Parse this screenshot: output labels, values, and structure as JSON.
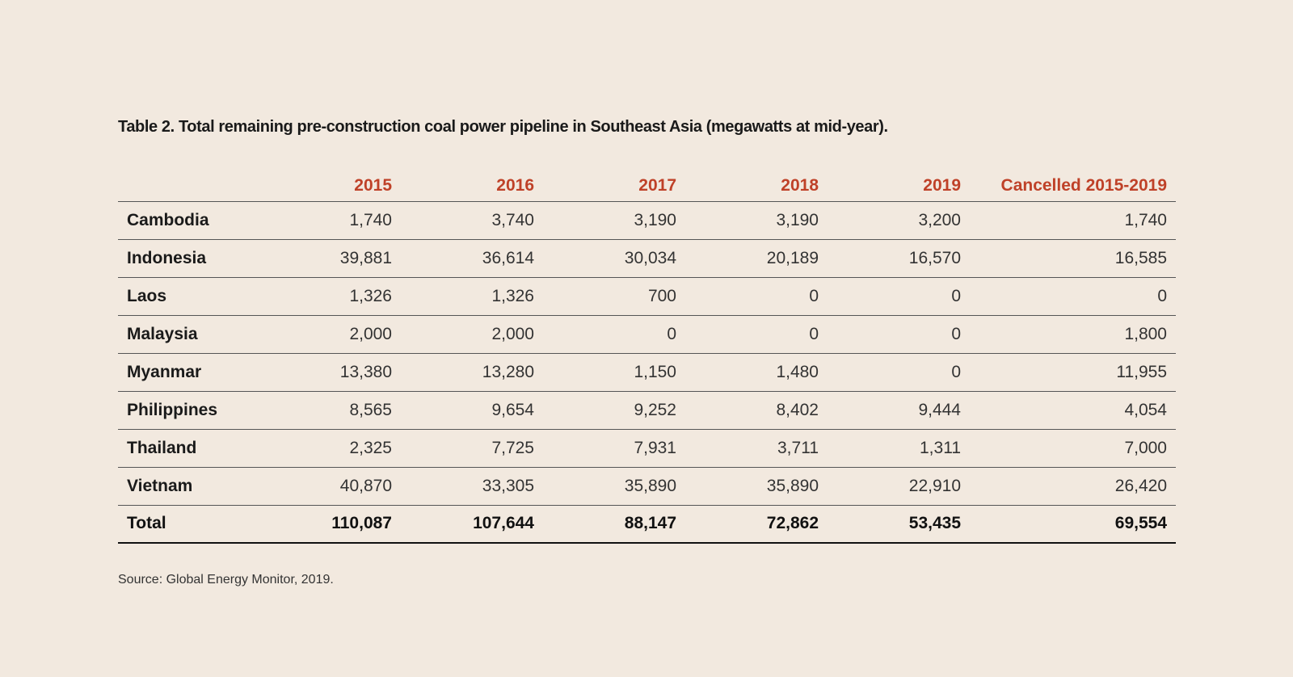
{
  "title": "Table 2. Total remaining pre-construction coal power pipeline in Southeast Asia (megawatts at mid-year).",
  "table": {
    "columns": [
      "2015",
      "2016",
      "2017",
      "2018",
      "2019",
      "Cancelled 2015-2019"
    ],
    "rows": [
      {
        "label": "Cambodia",
        "values": [
          "1,740",
          "3,740",
          "3,190",
          "3,190",
          "3,200",
          "1,740"
        ]
      },
      {
        "label": "Indonesia",
        "values": [
          "39,881",
          "36,614",
          "30,034",
          "20,189",
          "16,570",
          "16,585"
        ]
      },
      {
        "label": "Laos",
        "values": [
          "1,326",
          "1,326",
          "700",
          "0",
          "0",
          "0"
        ]
      },
      {
        "label": "Malaysia",
        "values": [
          "2,000",
          "2,000",
          "0",
          "0",
          "0",
          "1,800"
        ]
      },
      {
        "label": "Myanmar",
        "values": [
          "13,380",
          "13,280",
          "1,150",
          "1,480",
          "0",
          "11,955"
        ]
      },
      {
        "label": "Philippines",
        "values": [
          "8,565",
          "9,654",
          "9,252",
          "8,402",
          "9,444",
          "4,054"
        ]
      },
      {
        "label": "Thailand",
        "values": [
          "2,325",
          "7,725",
          "7,931",
          "3,711",
          "1,311",
          "7,000"
        ]
      },
      {
        "label": "Vietnam",
        "values": [
          "40,870",
          "33,305",
          "35,890",
          "35,890",
          "22,910",
          "26,420"
        ]
      }
    ],
    "total": {
      "label": "Total",
      "values": [
        "110,087",
        "107,644",
        "88,147",
        "72,862",
        "53,435",
        "69,554"
      ]
    }
  },
  "source": "Source: Global Energy Monitor, 2019."
}
